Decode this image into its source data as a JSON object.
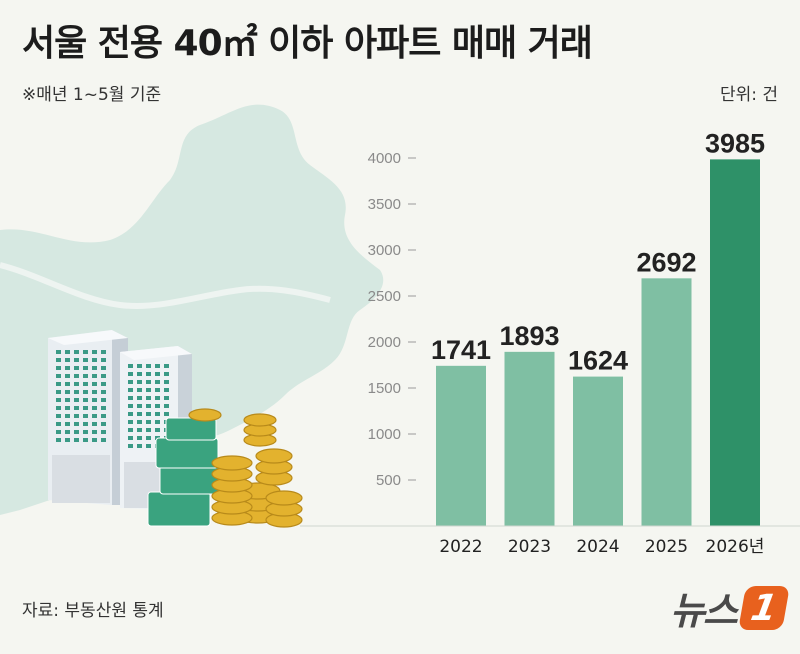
{
  "header": {
    "title": "서울 전용 40㎡ 이하 아파트 매매 거래",
    "subtitle": "※매년 1~5월 기준",
    "unit": "단위: 건"
  },
  "footer": {
    "source": "자료: 부동산원 통계",
    "logo_text": "뉴스",
    "logo_mark": "1"
  },
  "colors": {
    "bar": "#7fbfa3",
    "bar_highlight": "#2e9168",
    "map": "#d6e8e1"
  },
  "chart_data": {
    "type": "bar",
    "categories": [
      "2022",
      "2023",
      "2024",
      "2025",
      "2026년"
    ],
    "values": [
      1741,
      1893,
      1624,
      2692,
      3985
    ],
    "yticks": [
      500,
      1000,
      1500,
      2000,
      2500,
      3000,
      3500,
      4000
    ],
    "ylim": [
      0,
      4000
    ],
    "highlight_index": 4
  }
}
